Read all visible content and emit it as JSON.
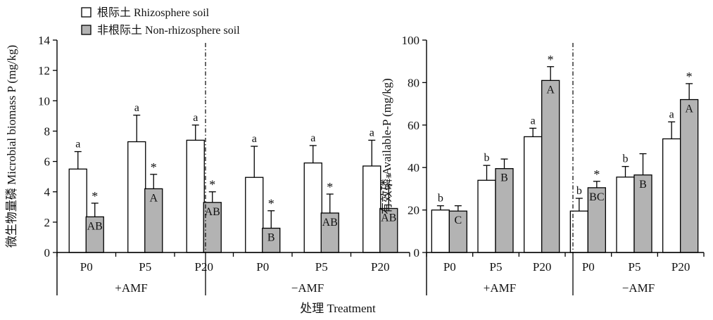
{
  "xlabel": "处理 Treatment",
  "legend": {
    "placement": "top-left",
    "entries": [
      {
        "label": "根际土 Rhizosphere soil",
        "color": "#ffffff"
      },
      {
        "label": "非根际土 Non-rhizosphere soil",
        "color": "#b3b3b3"
      }
    ]
  },
  "chart_data": [
    {
      "type": "bar",
      "ylabel": "微生物量磷 Microbial biomass P (mg/kg)",
      "ylim": [
        0,
        14
      ],
      "yticks": [
        "0",
        "2",
        "4",
        "6",
        "8",
        "10",
        "12",
        "14"
      ],
      "groups": [
        "+AMF",
        "−AMF"
      ],
      "categories": [
        "P0",
        "P5",
        "P20",
        "P0",
        "P5",
        "P20"
      ],
      "series": [
        {
          "name": "根际土 Rhizosphere soil",
          "color": "#ffffff",
          "values": [
            5.5,
            7.3,
            7.4,
            4.95,
            5.9,
            5.7
          ],
          "errors": [
            1.15,
            1.75,
            1.0,
            2.05,
            1.15,
            1.7
          ],
          "labels": [
            "a",
            "a",
            "a",
            "a",
            "a",
            "a"
          ],
          "marks": [
            "",
            "",
            "",
            "",
            "",
            ""
          ]
        },
        {
          "name": "非根际土 Non-rhizosphere soil",
          "color": "#b3b3b3",
          "values": [
            2.35,
            4.2,
            3.3,
            1.6,
            2.6,
            2.9
          ],
          "errors": [
            0.9,
            0.95,
            0.7,
            1.15,
            1.25,
            1.55
          ],
          "labels": [
            "AB",
            "A",
            "AB",
            "B",
            "AB",
            "AB"
          ],
          "marks": [
            "*",
            "*",
            "*",
            "*",
            "*",
            "*"
          ]
        }
      ]
    },
    {
      "type": "bar",
      "ylabel": "有效磷 Available-P (mg/kg)",
      "ylim": [
        0,
        100
      ],
      "yticks": [
        "0",
        "20",
        "40",
        "60",
        "80",
        "100"
      ],
      "groups": [
        "+AMF",
        "−AMF"
      ],
      "categories": [
        "P0",
        "P5",
        "P20",
        "P0",
        "P5",
        "P20"
      ],
      "series": [
        {
          "name": "根际土 Rhizosphere soil",
          "color": "#ffffff",
          "values": [
            20,
            34,
            54.5,
            19.5,
            35.5,
            53.5
          ],
          "errors": [
            2.0,
            7.0,
            4.0,
            6.0,
            5.0,
            8.0
          ],
          "labels": [
            "b",
            "b",
            "a",
            "b",
            "b",
            "a"
          ],
          "marks": [
            "",
            "",
            "",
            "",
            "",
            ""
          ]
        },
        {
          "name": "非根际土 Non-rhizosphere soil",
          "color": "#b3b3b3",
          "values": [
            19.5,
            39.5,
            81,
            30.5,
            36.5,
            72
          ],
          "errors": [
            2.5,
            4.5,
            6.5,
            3.0,
            10.0,
            7.5
          ],
          "labels": [
            "C",
            "B",
            "A",
            "BC",
            "B",
            "A"
          ],
          "marks": [
            "",
            "",
            "*",
            "*",
            "",
            "*"
          ]
        }
      ]
    }
  ]
}
